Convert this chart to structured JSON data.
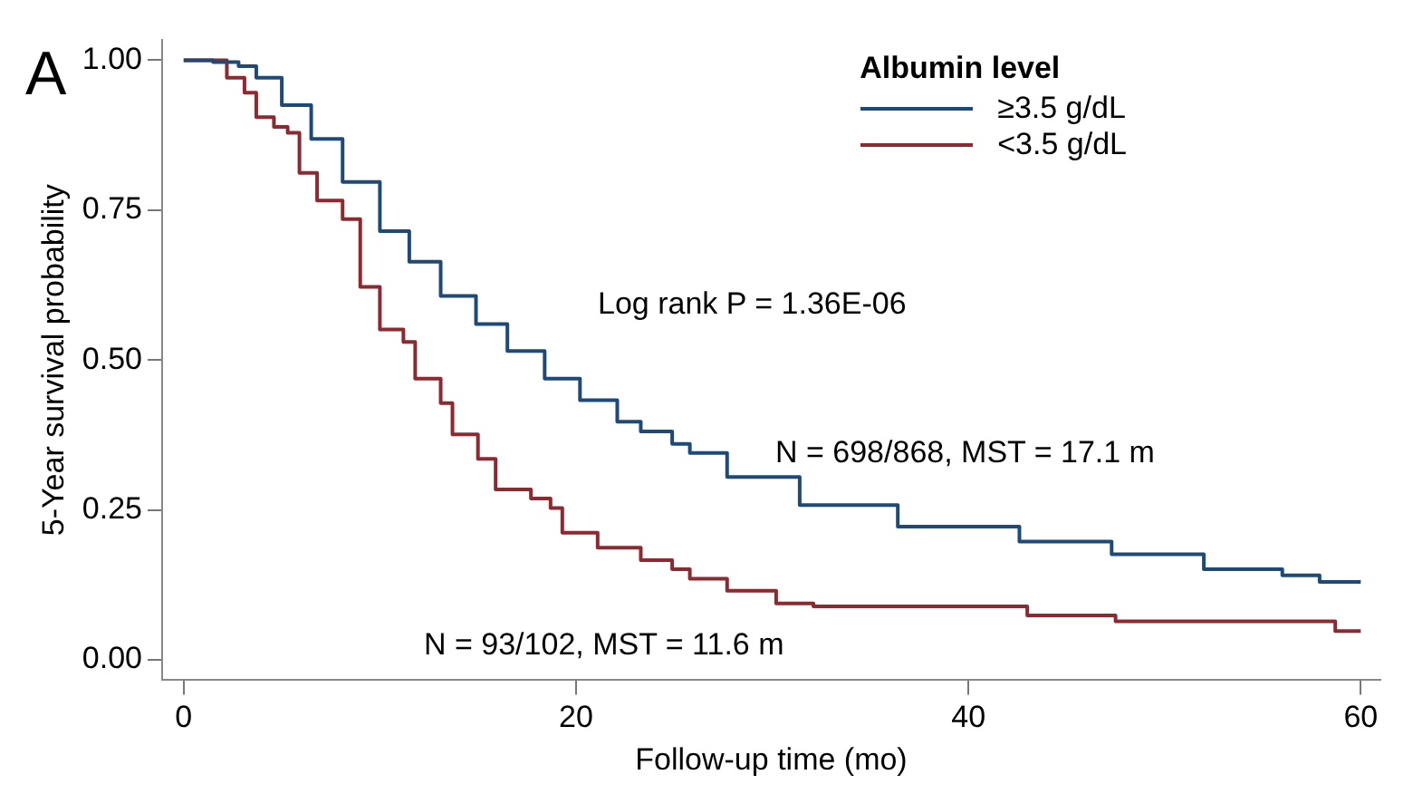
{
  "chart_data": {
    "type": "step",
    "xlabel": "Follow-up time (mo)",
    "ylabel": "5-Year survival probability",
    "legend_title": "Albumin level",
    "annotations": [
      "A",
      "Log rank P = 1.36E-06",
      "N = 698/868, MST = 17.1 m",
      "N = 93/102, MST = 11.6 m"
    ],
    "xlim": [
      -1.1,
      61
    ],
    "xticks": [
      0,
      20,
      40,
      60
    ],
    "ylim": [
      -0.034,
      1.034
    ],
    "yticks": [
      {
        "value": 0,
        "label": "0.00"
      },
      {
        "value": 0.25,
        "label": "0.25"
      },
      {
        "value": 0.5,
        "label": "0.50"
      },
      {
        "value": 0.75,
        "label": "0.75"
      },
      {
        "value": 1,
        "label": "1.00"
      }
    ],
    "grid": false,
    "legend": "top right",
    "marker": "none",
    "line_style": "solid",
    "series": [
      {
        "name": "≥3.5 g/dL",
        "color": "#1f4a78",
        "x": [
          0,
          1.5,
          2.8,
          3.7,
          5,
          6.5,
          8.1,
          10,
          11.5,
          13.1,
          14.9,
          16.5,
          18.4,
          20.2,
          22.1,
          23.3,
          24.9,
          25.8,
          27.7,
          31.4,
          36.4,
          42.6,
          47.3,
          52,
          56,
          57.9,
          60
        ],
        "values": [
          1,
          0.997,
          0.99,
          0.971,
          0.925,
          0.869,
          0.797,
          0.715,
          0.664,
          0.607,
          0.56,
          0.515,
          0.469,
          0.433,
          0.397,
          0.381,
          0.36,
          0.345,
          0.305,
          0.258,
          0.222,
          0.197,
          0.176,
          0.151,
          0.141,
          0.13,
          0.13
        ]
      },
      {
        "name": "<3.5 g/dL",
        "color": "#8b2a30",
        "x": [
          0,
          1.2,
          2.2,
          3.1,
          3.7,
          4.6,
          5.3,
          5.9,
          6.8,
          8.1,
          9,
          10,
          11.2,
          11.8,
          13.1,
          13.7,
          15,
          15.9,
          17.7,
          18.7,
          19.3,
          21.1,
          23.3,
          24.9,
          25.8,
          27.7,
          30.2,
          32.1,
          43,
          47.5,
          58.7,
          60
        ],
        "values": [
          1,
          1,
          0.971,
          0.946,
          0.905,
          0.889,
          0.879,
          0.812,
          0.766,
          0.735,
          0.622,
          0.551,
          0.53,
          0.469,
          0.428,
          0.376,
          0.335,
          0.284,
          0.269,
          0.253,
          0.212,
          0.187,
          0.166,
          0.151,
          0.135,
          0.115,
          0.094,
          0.089,
          0.074,
          0.064,
          0.048,
          0.048
        ]
      }
    ]
  }
}
